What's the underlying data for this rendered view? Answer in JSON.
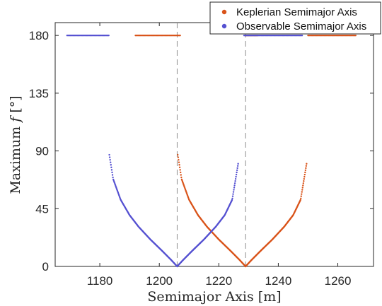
{
  "chart_data": {
    "type": "scatter",
    "title": "",
    "xlabel": "Semimajor Axis [m]",
    "ylabel": "Maximum f [°]",
    "ylabel_parts": {
      "prefix": "Maximum ",
      "symbol": "f",
      "unit": " [°]"
    },
    "xlim": [
      1165,
      1272
    ],
    "ylim": [
      0,
      190
    ],
    "xticks": [
      "1180",
      "1200",
      "1220",
      "1240",
      "1260"
    ],
    "yticks": [
      "0",
      "45",
      "90",
      "135",
      "180"
    ],
    "grid": false,
    "legend_position": "top-right",
    "reference_lines": [
      {
        "x": 1206,
        "style": "dashed"
      },
      {
        "x": 1229,
        "style": "dashed"
      }
    ],
    "series": [
      {
        "name": "Keplerian Semimajor Axis",
        "color": "#D95319",
        "segments": [
          {
            "kind": "flat",
            "x": [
              1192,
              1207
            ],
            "y": 180
          },
          {
            "kind": "flat",
            "x": [
              1229,
              1233
            ],
            "y": 180
          },
          {
            "kind": "flat",
            "x": [
              1250,
              1266
            ],
            "y": 180
          },
          {
            "kind": "curve",
            "x": [
              1206.2,
              1207.5,
              1210,
              1213,
              1216,
              1220,
              1224,
              1227,
              1229
            ],
            "y": [
              87,
              68,
              52,
              40,
              31,
              21,
              12,
              5,
              0
            ]
          },
          {
            "kind": "curve",
            "x": [
              1229,
              1231,
              1234,
              1238,
              1242,
              1245,
              1247.5,
              1249.5
            ],
            "y": [
              0,
              5,
              12,
              21,
              31,
              40,
              52,
              80
            ]
          }
        ]
      },
      {
        "name": "Observable Semimajor Axis",
        "color": "#5551D1",
        "segments": [
          {
            "kind": "flat",
            "x": [
              1169,
              1183
            ],
            "y": 180
          },
          {
            "kind": "flat",
            "x": [
              1228.5,
              1248
            ],
            "y": 180
          },
          {
            "kind": "curve",
            "x": [
              1183.2,
              1184.5,
              1187,
              1190,
              1193,
              1197,
              1201,
              1204,
              1206
            ],
            "y": [
              87,
              68,
              52,
              40,
              31,
              21,
              12,
              5,
              0
            ]
          },
          {
            "kind": "curve",
            "x": [
              1206,
              1208,
              1211,
              1215,
              1219,
              1222,
              1224.5,
              1226.5
            ],
            "y": [
              0,
              5,
              12,
              21,
              31,
              40,
              52,
              80
            ]
          }
        ]
      }
    ]
  }
}
